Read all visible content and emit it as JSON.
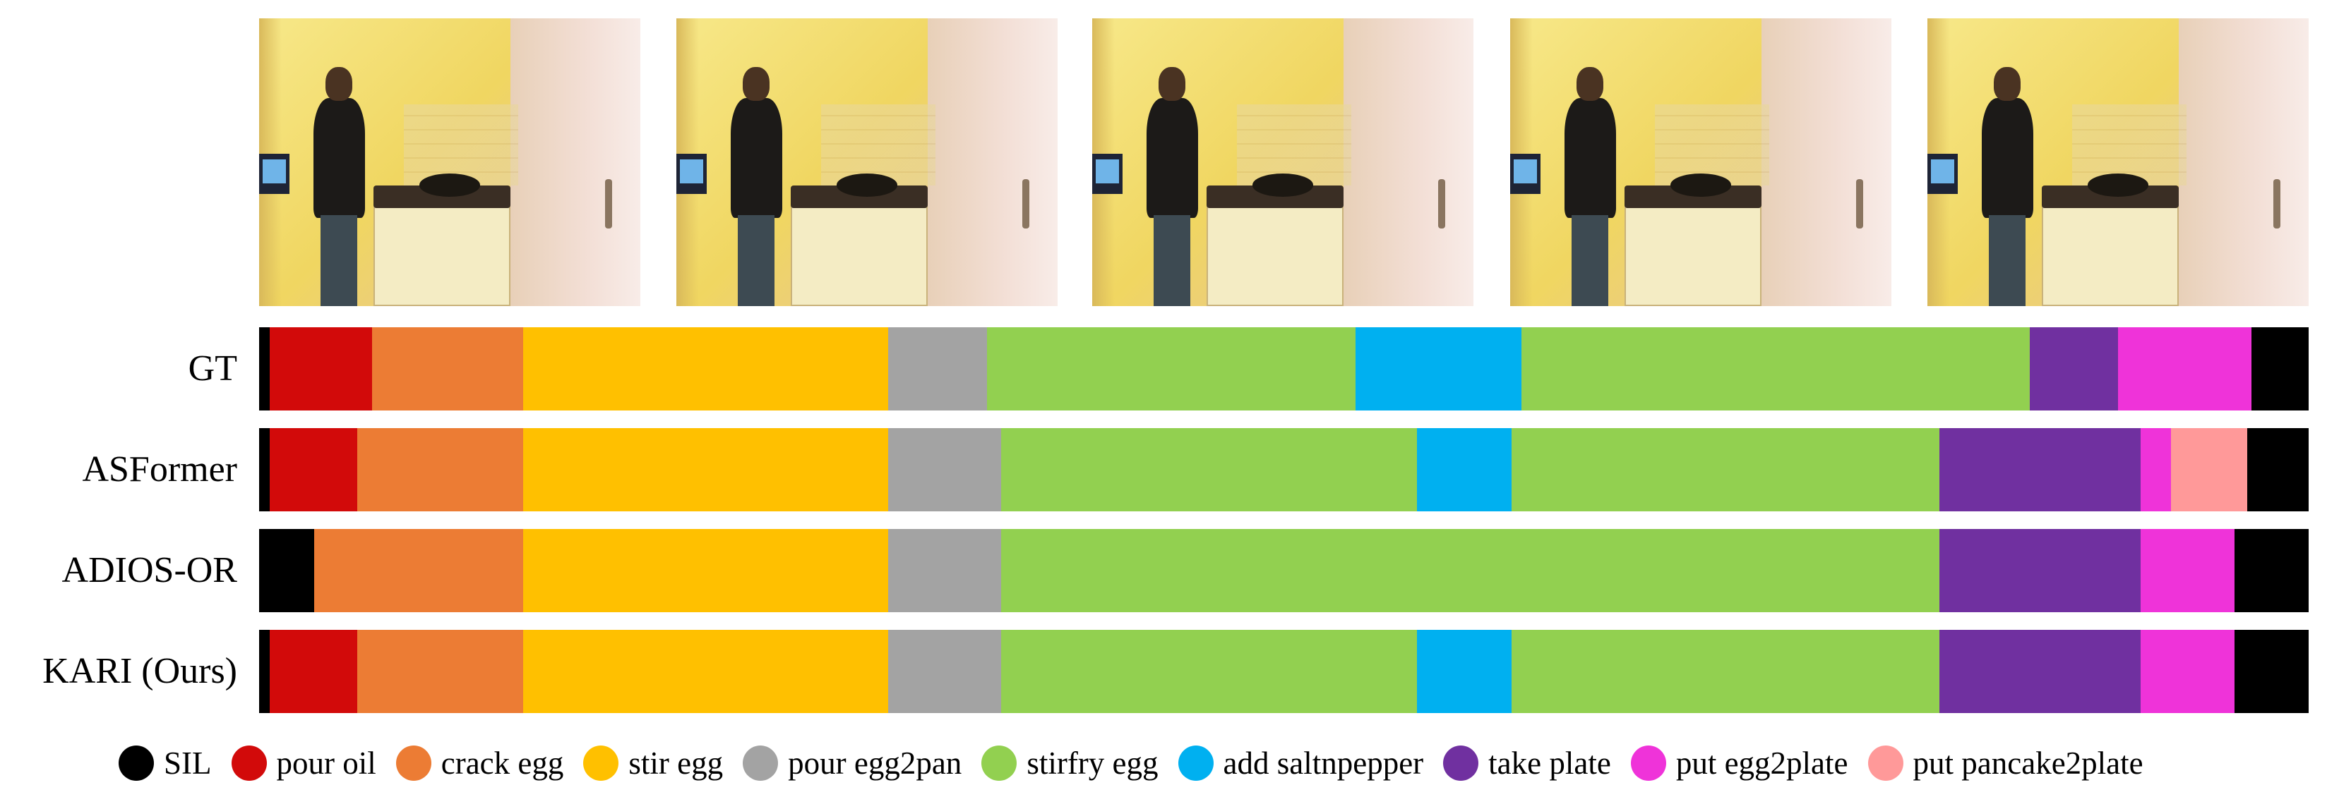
{
  "figure": {
    "frames": [
      {
        "name": "video-frame-1"
      },
      {
        "name": "video-frame-2"
      },
      {
        "name": "video-frame-3"
      },
      {
        "name": "video-frame-4"
      },
      {
        "name": "video-frame-5"
      }
    ],
    "classes": [
      {
        "id": "SIL",
        "label": "SIL",
        "color": "#000000"
      },
      {
        "id": "pour_oil",
        "label": "pour oil",
        "color": "#d20a0a"
      },
      {
        "id": "crack_egg",
        "label": "crack egg",
        "color": "#ec7c34"
      },
      {
        "id": "stir_egg",
        "label": "stir egg",
        "color": "#ffc000"
      },
      {
        "id": "pour_egg2pan",
        "label": "pour egg2pan",
        "color": "#a3a3a3"
      },
      {
        "id": "stirfry_egg",
        "label": "stirfry egg",
        "color": "#92d050"
      },
      {
        "id": "add_saltnpepper",
        "label": "add saltnpepper",
        "color": "#00b0f0"
      },
      {
        "id": "take_plate",
        "label": "take plate",
        "color": "#7030a0"
      },
      {
        "id": "put_egg2plate",
        "label": "put egg2plate",
        "color": "#ef33d9"
      },
      {
        "id": "put_pancake2plate",
        "label": "put pancake2plate",
        "color": "#ff9999"
      }
    ],
    "rows": [
      {
        "label": "GT",
        "segments": [
          {
            "cls": "SIL",
            "start": 0.0,
            "end": 0.005
          },
          {
            "cls": "pour_oil",
            "start": 0.005,
            "end": 0.055
          },
          {
            "cls": "crack_egg",
            "start": 0.055,
            "end": 0.129
          },
          {
            "cls": "stir_egg",
            "start": 0.129,
            "end": 0.307
          },
          {
            "cls": "pour_egg2pan",
            "start": 0.307,
            "end": 0.355
          },
          {
            "cls": "stirfry_egg",
            "start": 0.355,
            "end": 0.535
          },
          {
            "cls": "add_saltnpepper",
            "start": 0.535,
            "end": 0.616
          },
          {
            "cls": "stirfry_egg",
            "start": 0.616,
            "end": 0.864
          },
          {
            "cls": "take_plate",
            "start": 0.864,
            "end": 0.907
          },
          {
            "cls": "put_egg2plate",
            "start": 0.907,
            "end": 0.972
          },
          {
            "cls": "SIL",
            "start": 0.972,
            "end": 1.0
          }
        ]
      },
      {
        "label": "ASFormer",
        "segments": [
          {
            "cls": "SIL",
            "start": 0.0,
            "end": 0.005
          },
          {
            "cls": "pour_oil",
            "start": 0.005,
            "end": 0.048
          },
          {
            "cls": "crack_egg",
            "start": 0.048,
            "end": 0.129
          },
          {
            "cls": "stir_egg",
            "start": 0.129,
            "end": 0.307
          },
          {
            "cls": "pour_egg2pan",
            "start": 0.307,
            "end": 0.362
          },
          {
            "cls": "stirfry_egg",
            "start": 0.362,
            "end": 0.565
          },
          {
            "cls": "add_saltnpepper",
            "start": 0.565,
            "end": 0.611
          },
          {
            "cls": "stirfry_egg",
            "start": 0.611,
            "end": 0.82
          },
          {
            "cls": "take_plate",
            "start": 0.82,
            "end": 0.918
          },
          {
            "cls": "put_egg2plate",
            "start": 0.918,
            "end": 0.933
          },
          {
            "cls": "put_pancake2plate",
            "start": 0.933,
            "end": 0.97
          },
          {
            "cls": "SIL",
            "start": 0.97,
            "end": 1.0
          }
        ]
      },
      {
        "label": "ADIOS-OR",
        "segments": [
          {
            "cls": "SIL",
            "start": 0.0,
            "end": 0.027
          },
          {
            "cls": "crack_egg",
            "start": 0.027,
            "end": 0.129
          },
          {
            "cls": "stir_egg",
            "start": 0.129,
            "end": 0.307
          },
          {
            "cls": "pour_egg2pan",
            "start": 0.307,
            "end": 0.362
          },
          {
            "cls": "stirfry_egg",
            "start": 0.362,
            "end": 0.82
          },
          {
            "cls": "take_plate",
            "start": 0.82,
            "end": 0.918
          },
          {
            "cls": "put_egg2plate",
            "start": 0.918,
            "end": 0.964
          },
          {
            "cls": "SIL",
            "start": 0.964,
            "end": 1.0
          }
        ]
      },
      {
        "label": "KARI (Ours)",
        "segments": [
          {
            "cls": "SIL",
            "start": 0.0,
            "end": 0.005
          },
          {
            "cls": "pour_oil",
            "start": 0.005,
            "end": 0.048
          },
          {
            "cls": "crack_egg",
            "start": 0.048,
            "end": 0.129
          },
          {
            "cls": "stir_egg",
            "start": 0.129,
            "end": 0.307
          },
          {
            "cls": "pour_egg2pan",
            "start": 0.307,
            "end": 0.362
          },
          {
            "cls": "stirfry_egg",
            "start": 0.362,
            "end": 0.565
          },
          {
            "cls": "add_saltnpepper",
            "start": 0.565,
            "end": 0.611
          },
          {
            "cls": "stirfry_egg",
            "start": 0.611,
            "end": 0.82
          },
          {
            "cls": "take_plate",
            "start": 0.82,
            "end": 0.918
          },
          {
            "cls": "put_egg2plate",
            "start": 0.918,
            "end": 0.964
          },
          {
            "cls": "SIL",
            "start": 0.964,
            "end": 1.0
          }
        ]
      }
    ]
  }
}
